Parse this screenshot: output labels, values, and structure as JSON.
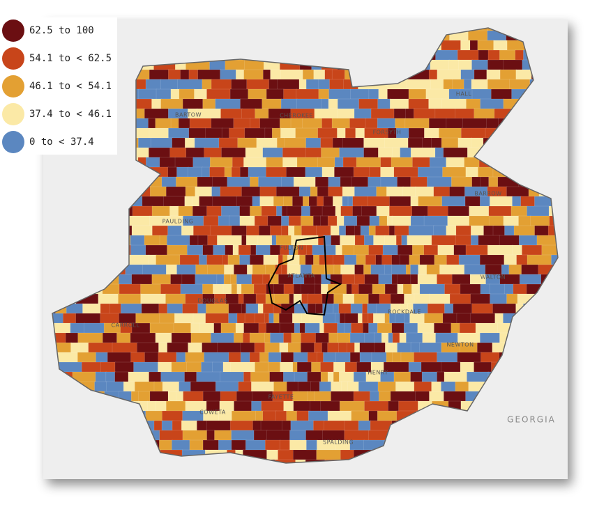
{
  "legend": {
    "items": [
      {
        "label": "62.5 to 100",
        "color": "#6b0f12"
      },
      {
        "label": "54.1 to < 62.5",
        "color": "#c8451a"
      },
      {
        "label": "46.1 to < 54.1",
        "color": "#e3a033"
      },
      {
        "label": "37.4 to < 46.1",
        "color": "#fbe9a6"
      },
      {
        "label": "0 to < 37.4",
        "color": "#5b87c0"
      }
    ]
  },
  "map": {
    "labels": [
      "BARTOW",
      "CHEROKEE",
      "FORSYTH",
      "HALL",
      "BARROW",
      "PAULDING",
      "FULTON",
      "ATLANTA",
      "DOUGLAS",
      "ROCKDALE",
      "WALTON",
      "CARROLL",
      "NEWTON",
      "HENRY",
      "FAYETTE",
      "COWETA",
      "SPALDING",
      "GEORGIA"
    ]
  }
}
